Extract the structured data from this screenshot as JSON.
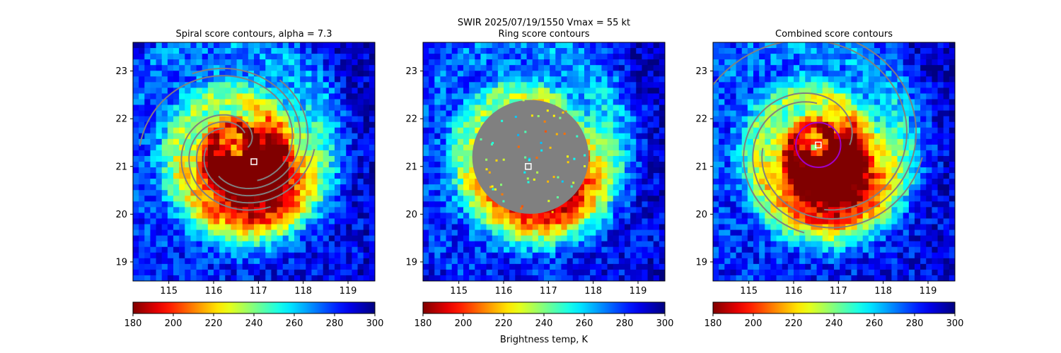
{
  "figure": {
    "suptitle_line1": "SWIR  2025/07/19/1550    Vmax = 55 kt",
    "colorbar_label": "Brightness temp, K"
  },
  "colors": {
    "contour": "#808080",
    "ring_mask": "#808080",
    "marker": "#ffffff",
    "center_circle": "#a000c8",
    "background": "#ffffff"
  },
  "chart_data": [
    {
      "type": "heatmap",
      "title": "Spiral score contours, alpha =  7.3",
      "field": "brightness temperature (K)",
      "colormap": "jet_reversed",
      "xlim": [
        114.2,
        119.6
      ],
      "ylim": [
        18.6,
        23.6
      ],
      "xticks": [
        "115",
        "116",
        "117",
        "118",
        "119"
      ],
      "yticks": [
        "19",
        "20",
        "21",
        "22",
        "23"
      ],
      "colorbar": {
        "range": [
          180,
          300
        ],
        "ticks": [
          "180",
          "200",
          "220",
          "240",
          "260",
          "280",
          "300"
        ]
      },
      "storm_center": [
        116.5,
        21.4
      ],
      "spiral_contours": 6,
      "marker": [
        116.9,
        21.1
      ]
    },
    {
      "type": "heatmap",
      "title": "Ring score contours",
      "field": "brightness temperature (K)",
      "colormap": "jet_reversed",
      "xlim": [
        114.2,
        119.6
      ],
      "ylim": [
        18.6,
        23.6
      ],
      "xticks": [
        "115",
        "116",
        "117",
        "118",
        "119"
      ],
      "yticks": [
        "19",
        "20",
        "21",
        "22",
        "23"
      ],
      "colorbar": {
        "range": [
          180,
          300
        ],
        "ticks": [
          "180",
          "200",
          "220",
          "240",
          "260",
          "280",
          "300"
        ]
      },
      "storm_center": [
        116.5,
        21.4
      ],
      "ring_region": {
        "center": [
          116.6,
          21.2
        ],
        "radius_deg": 1.3
      },
      "marker": [
        116.55,
        21.0
      ]
    },
    {
      "type": "heatmap",
      "title": "Combined score contours",
      "field": "brightness temperature (K)",
      "colormap": "jet_reversed",
      "xlim": [
        114.2,
        119.6
      ],
      "ylim": [
        18.6,
        23.6
      ],
      "xticks": [
        "115",
        "116",
        "117",
        "118",
        "119"
      ],
      "yticks": [
        "19",
        "20",
        "21",
        "22",
        "23"
      ],
      "colorbar": {
        "range": [
          180,
          300
        ],
        "ticks": [
          "180",
          "200",
          "220",
          "240",
          "260",
          "280",
          "300"
        ]
      },
      "storm_center": [
        116.5,
        21.4
      ],
      "center_circle": {
        "center": [
          116.55,
          21.45
        ],
        "radius_deg": 0.5
      },
      "marker": [
        116.55,
        21.45
      ]
    }
  ]
}
